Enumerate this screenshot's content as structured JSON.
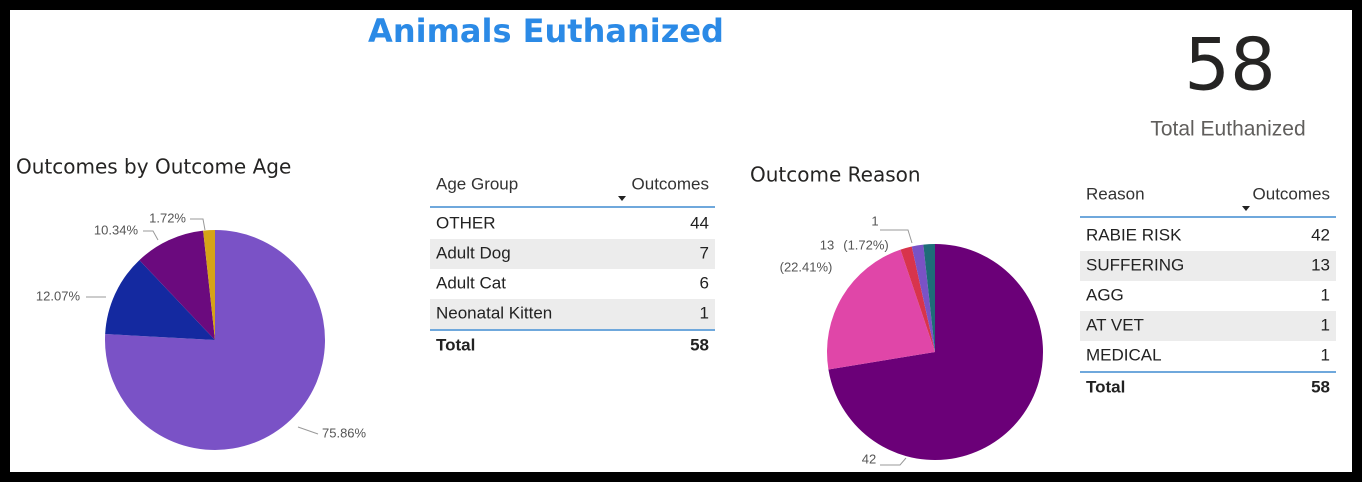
{
  "title": "Animals Euthanized",
  "kpi": {
    "value": 58,
    "label": "Total Euthanized"
  },
  "chart_data": [
    {
      "type": "pie",
      "title": "Outcomes by Outcome Age",
      "values": [
        75.86,
        12.07,
        10.34,
        1.72
      ],
      "value_labels": [
        "75.86%",
        "12.07%",
        "10.34%",
        "1.72%"
      ],
      "colors": [
        "#7a52c6",
        "#1429a0",
        "#6b0a7e",
        "#d6a417"
      ]
    },
    {
      "type": "pie",
      "title": "Outcome Reason",
      "values": [
        42,
        13,
        1,
        1,
        1
      ],
      "value_labels": [
        "42",
        "13",
        "1",
        null,
        null
      ],
      "percent_labels": [
        "(72.41%)",
        "(22.41%)",
        "(1.72%)",
        null,
        null
      ],
      "colors": [
        "#6b0078",
        "#e046a8",
        "#d8344c",
        "#7a52c6",
        "#1e6c78"
      ]
    }
  ],
  "tables": [
    {
      "columns": [
        "Age Group",
        "Outcomes"
      ],
      "rows": [
        [
          "OTHER",
          44
        ],
        [
          "Adult Dog",
          7
        ],
        [
          "Adult Cat",
          6
        ],
        [
          "Neonatal Kitten",
          1
        ]
      ],
      "total": [
        "Total",
        58
      ]
    },
    {
      "columns": [
        "Reason",
        "Outcomes"
      ],
      "rows": [
        [
          "RABIE RISK",
          42
        ],
        [
          "SUFFERING",
          13
        ],
        [
          "AGG",
          1
        ],
        [
          "AT VET",
          1
        ],
        [
          "MEDICAL",
          1
        ]
      ],
      "total": [
        "Total",
        58
      ]
    }
  ]
}
